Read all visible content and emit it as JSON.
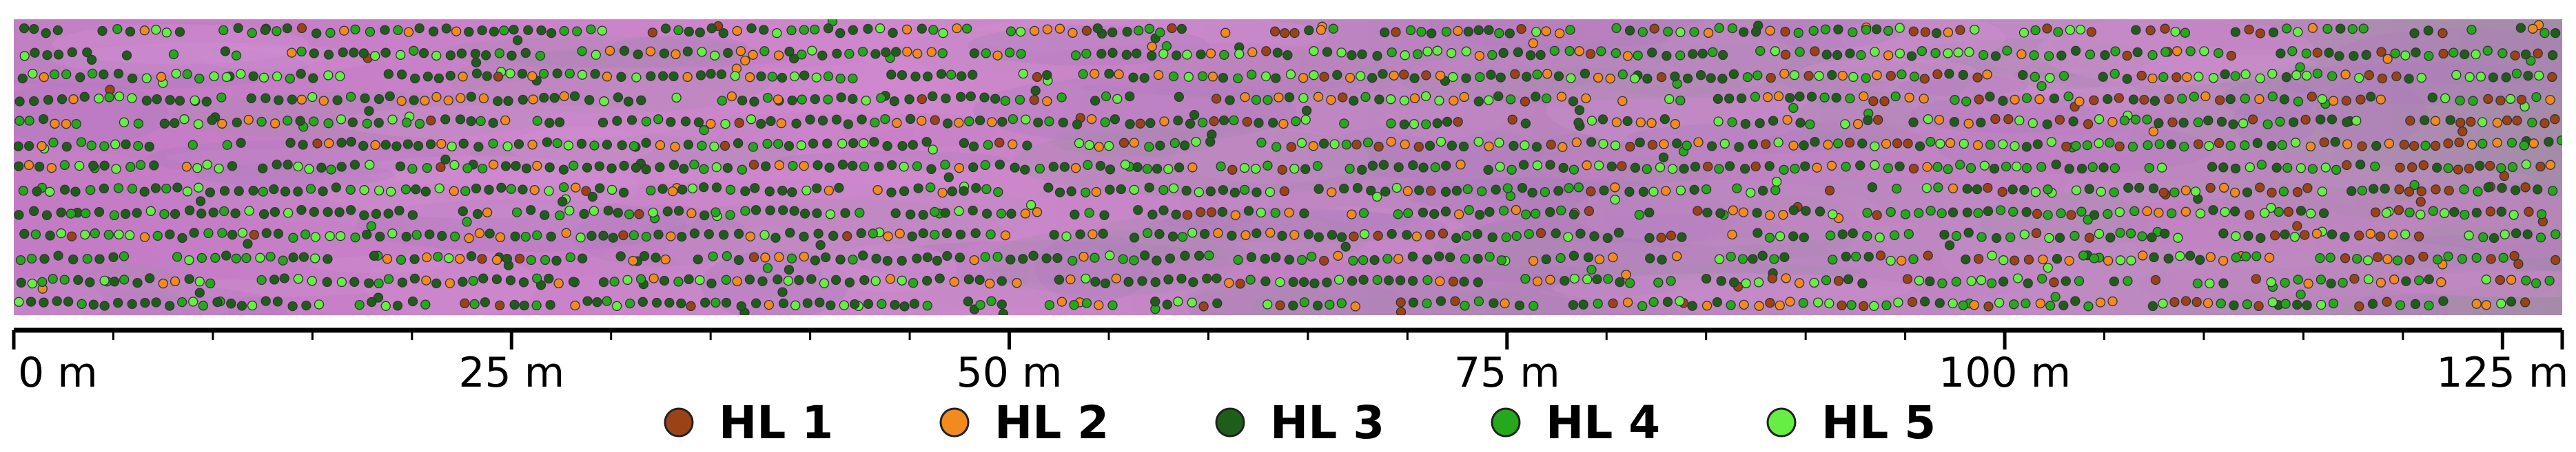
{
  "map": {
    "background_colors": [
      "#c77dc6",
      "#b07bbd",
      "#c489c6",
      "#d18fd0",
      "#a98aae"
    ],
    "marker_outline": "#333333",
    "rows": 13,
    "length_m": 128,
    "pattern_note": ""
  },
  "scale_bar": {
    "max_m": 128,
    "major_ticks": [
      0,
      25,
      50,
      75,
      100,
      125
    ],
    "minor_step_m": 5,
    "labels": [
      "0 m",
      "25 m",
      "50 m",
      "75 m",
      "100 m",
      "125 m"
    ]
  },
  "legend": {
    "items": [
      {
        "label": "HL 1",
        "color": "#9b4317"
      },
      {
        "label": "HL 2",
        "color": "#f28a1e"
      },
      {
        "label": "HL 3",
        "color": "#1f5e1a"
      },
      {
        "label": "HL 4",
        "color": "#25a81c"
      },
      {
        "label": "HL 5",
        "color": "#66ee45"
      }
    ]
  }
}
